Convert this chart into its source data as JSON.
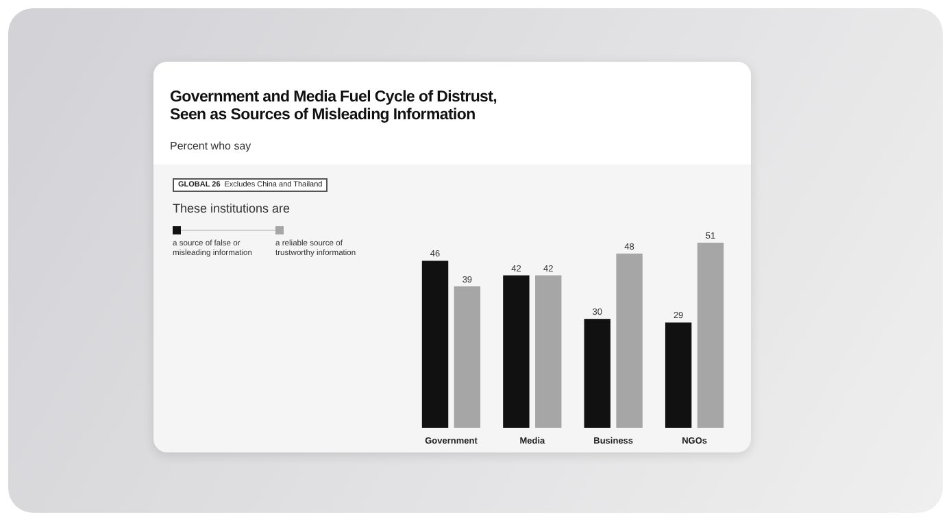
{
  "chart_data": {
    "type": "bar",
    "title": "Government and Media Fuel Cycle of Distrust, Seen as Sources of Misleading Information",
    "subtitle": "Percent who say",
    "legend_title": "These institutions are",
    "annotations": [
      "GLOBAL 26",
      "Excludes China and Thailand"
    ],
    "categories": [
      "Government",
      "Media",
      "Business",
      "NGOs"
    ],
    "series": [
      {
        "name": "a source of false or misleading information",
        "color": "#111111",
        "values": [
          46,
          42,
          30,
          29
        ]
      },
      {
        "name": "a reliable source of trustworthy information",
        "color": "#a6a6a6",
        "values": [
          39,
          42,
          48,
          51
        ]
      }
    ],
    "data_labels": true,
    "legend": "top left",
    "tick_labels": "x"
  }
}
